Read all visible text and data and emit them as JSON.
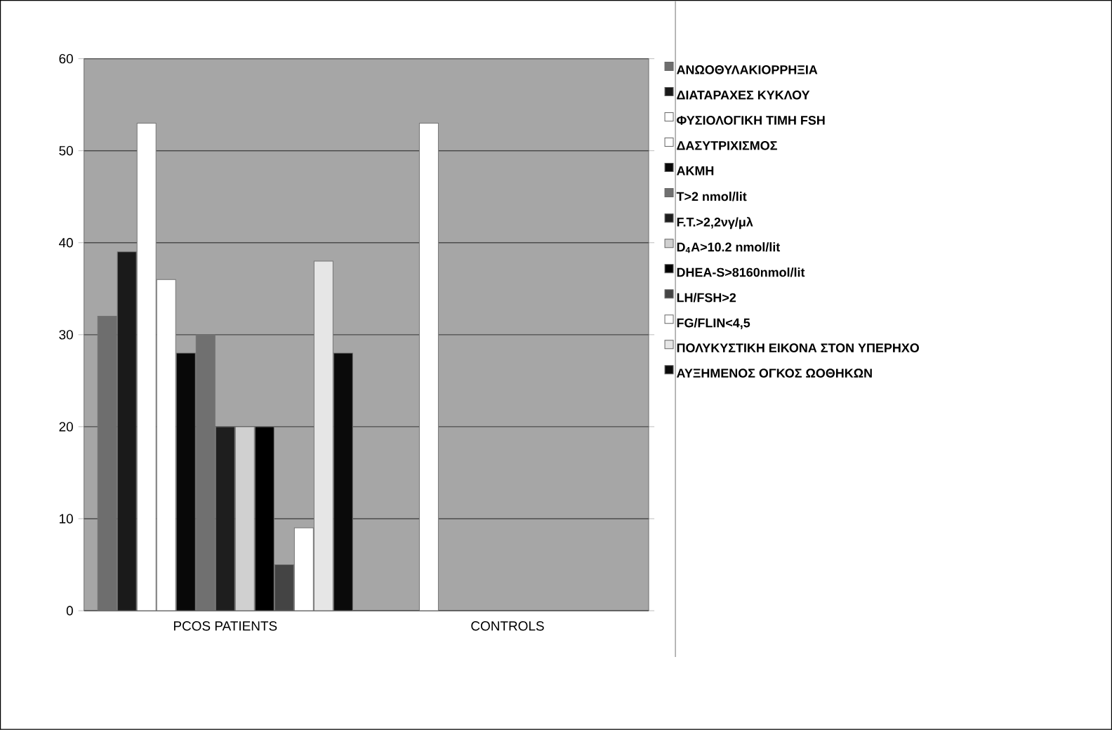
{
  "chart_data": {
    "type": "bar",
    "categories": [
      "PCOS PATIENTS",
      "CONTROLS"
    ],
    "ylim": [
      0,
      60
    ],
    "yticks": [
      0,
      10,
      20,
      30,
      40,
      50,
      60
    ],
    "grid": "y",
    "legend": "right",
    "series": [
      {
        "name": "ΑΝΩΟΘΥΛΑΚΙΟΡΡΗΞΙΑ",
        "color": "#6e6e6e",
        "values": [
          32,
          null
        ]
      },
      {
        "name": "ΔΙΑΤΑΡΑΧΕΣ ΚΥΚΛΟΥ",
        "color": "#1a1a1a",
        "values": [
          39,
          null
        ]
      },
      {
        "name": "ΦΥΣΙΟΛΟΓΙΚΗ ΤΙΜΗ FSH",
        "color": "#ffffff",
        "values": [
          53,
          53
        ]
      },
      {
        "name": "ΔΑΣΥΤΡΙΧΙΣΜΟΣ",
        "color": "#ffffff",
        "values": [
          36,
          null
        ]
      },
      {
        "name": "ΑΚΜΗ",
        "color": "#080808",
        "values": [
          28,
          null
        ]
      },
      {
        "name": "T>2 nmol/lit",
        "color": "#707070",
        "values": [
          30,
          null
        ]
      },
      {
        "name": "F.T.>2,2νγ/μλ",
        "color": "#1e1e1e",
        "values": [
          20,
          null
        ]
      },
      {
        "name": "D$_{4}$A>10.2 nmol/lit",
        "color": "#d0d0d0",
        "values": [
          20,
          null
        ]
      },
      {
        "name": "DHEA-S>8160nmol/lit",
        "color": "#000000",
        "values": [
          20,
          null
        ]
      },
      {
        "name": "LH/FSH>2",
        "color": "#444444",
        "values": [
          5,
          null
        ]
      },
      {
        "name": "FG/FLIN<4,5",
        "color": "#ffffff",
        "values": [
          9,
          null
        ]
      },
      {
        "name": "ΠΟΛΥΚΥΣΤΙΚΗ ΕΙΚΟΝΑ ΣΤΟΝ ΥΠΕΡΗΧΟ",
        "color": "#e6e6e6",
        "values": [
          38,
          null
        ]
      },
      {
        "name": "ΑΥΞΗΜΕΝΟΣ ΟΓΚΟΣ ΩΟΘΗΚΩΝ",
        "color": "#0a0a0a",
        "values": [
          28,
          null
        ]
      }
    ]
  }
}
